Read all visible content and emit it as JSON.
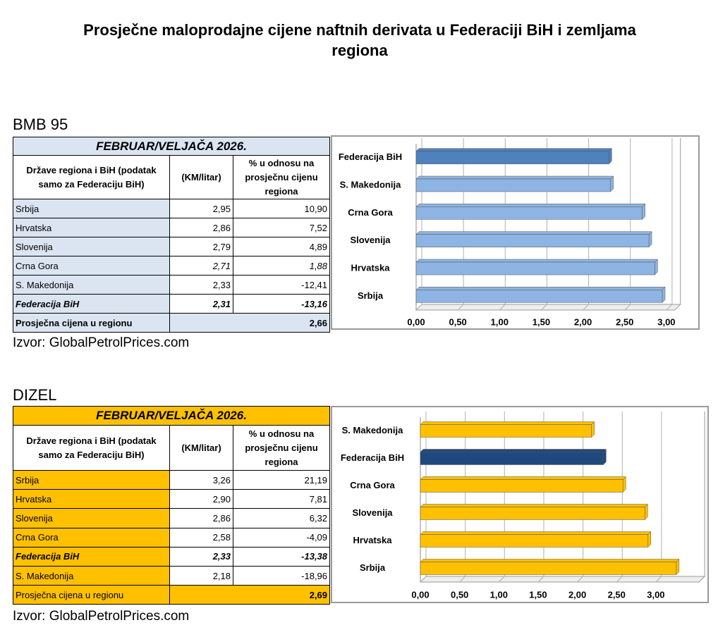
{
  "title": "Prosječne maloprodajne cijene naftnih derivata u Federaciji BiH i zemljama regiona",
  "sections": [
    {
      "heading": "BMB 95",
      "table": {
        "title": "FEBRUAR/VELJAČA 2026.",
        "color": "#dbe5f1",
        "columns": [
          "Države regiona i BiH (podatak samo za Federaciju BiH)",
          "(KM/litar)",
          "% u odnosu na prosječnu cijenu regiona"
        ],
        "rows": [
          [
            "Srbija",
            "2,95",
            "10,90"
          ],
          [
            "Hrvatska",
            "2,86",
            "7,52"
          ],
          [
            "Slovenija",
            "2,79",
            "4,89"
          ],
          [
            "Crna Gora",
            "2,71",
            "1,88"
          ],
          [
            "S. Makedonija",
            "2,33",
            "-12,41"
          ],
          [
            "Federacija BiH",
            "2,31",
            "-13,16"
          ]
        ],
        "average": [
          "Prosječna cijena u regionu",
          "2,66"
        ]
      },
      "source": "Izvor: GlobalPetrolPrices.com"
    },
    {
      "heading": "DIZEL",
      "table": {
        "title": "FEBRUAR/VELJAČA 2026.",
        "color": "#ffc000",
        "columns": [
          "Države regiona i BiH (podatak samo za Federaciju BiH)",
          "(KM/litar)",
          "% u odnosu na prosječnu cijenu regiona"
        ],
        "rows": [
          [
            "Srbija",
            "3,26",
            "21,19"
          ],
          [
            "Hrvatska",
            "2,90",
            "7,81"
          ],
          [
            "Slovenija",
            "2,86",
            "6,32"
          ],
          [
            "Crna Gora",
            "2,58",
            "-4,09"
          ],
          [
            "Federacija BiH",
            "2,33",
            "-13,38"
          ],
          [
            "S. Makedonija",
            "2,18",
            "-18,96"
          ]
        ],
        "average": [
          "Prosječna cijena u regionu",
          "2,69"
        ]
      },
      "source": "Izvor: GlobalPetrolPrices.com"
    }
  ],
  "chart_data": [
    {
      "type": "bar",
      "orientation": "horizontal",
      "categories": [
        "Federacija BiH",
        "S. Makedonija",
        "Crna Gora",
        "Slovenija",
        "Hrvatska",
        "Srbija"
      ],
      "values": [
        2.31,
        2.33,
        2.71,
        2.79,
        2.86,
        2.95
      ],
      "colors": [
        "#4f81bd",
        "#8db4e2",
        "#8db4e2",
        "#8db4e2",
        "#8db4e2",
        "#8db4e2"
      ],
      "xlim": [
        0,
        3.1
      ],
      "xticks": [
        {
          "value": 0,
          "label": "0,00"
        },
        {
          "value": 0.5,
          "label": "0,50"
        },
        {
          "value": 1,
          "label": "1,00"
        },
        {
          "value": 1.5,
          "label": "1,50"
        },
        {
          "value": 2,
          "label": "2,00"
        },
        {
          "value": 2.5,
          "label": "2,50"
        },
        {
          "value": 3,
          "label": "3,00"
        }
      ],
      "grid": true
    },
    {
      "type": "bar",
      "orientation": "horizontal",
      "categories": [
        "S. Makedonija",
        "Federacija BiH",
        "Crna Gora",
        "Slovenija",
        "Hrvatska",
        "Srbija"
      ],
      "values": [
        2.18,
        2.33,
        2.58,
        2.86,
        2.9,
        3.26
      ],
      "colors": [
        "#ffc000",
        "#1f497d",
        "#ffc000",
        "#ffc000",
        "#ffc000",
        "#ffc000"
      ],
      "xlim": [
        0,
        3.55
      ],
      "xticks": [
        {
          "value": 0,
          "label": "0,00"
        },
        {
          "value": 0.5,
          "label": "0,50"
        },
        {
          "value": 1,
          "label": "1,00"
        },
        {
          "value": 1.5,
          "label": "1,50"
        },
        {
          "value": 2,
          "label": "2,00"
        },
        {
          "value": 2.5,
          "label": "2,50"
        },
        {
          "value": 3,
          "label": "3,00"
        }
      ],
      "grid": true
    }
  ]
}
